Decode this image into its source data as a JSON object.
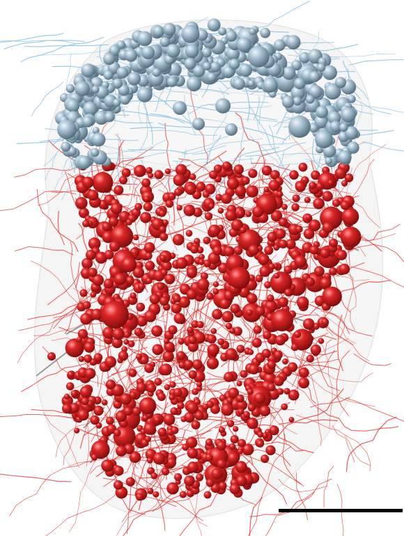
{
  "figure": {
    "description_visible_text": "",
    "colors": {
      "background": "#ffffff",
      "hull": "#e9e9e9",
      "blue_cells": "#9fb8c8",
      "blue_cells_highlight": "#e6f1f7",
      "blue_cells_shadow": "#5f7d90",
      "blue_neurites": "#8ec3e0",
      "red_cells": "#d42020",
      "red_cells_highlight": "#ff9c9c",
      "red_cells_shadow": "#7e0c0c",
      "red_neurites": "#e3302c",
      "grey_processes": "#9a9a9a",
      "scale_bar": "#000000"
    },
    "scale_bar": {
      "label": ""
    }
  }
}
